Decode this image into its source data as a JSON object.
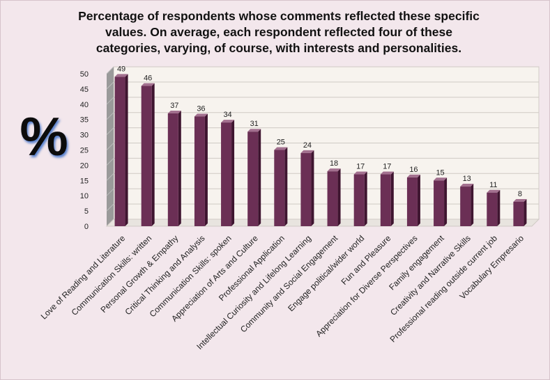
{
  "title_lines": [
    "Percentage of respondents whose comments reflected these specific",
    "values. On average, each respondent reflected four of these",
    "categories, varying, of course, with interests and personalities."
  ],
  "y_symbol": "%",
  "colors": {
    "bar_front": "#6b2f55",
    "bar_side": "#3f1530",
    "bar_top": "#a3708f",
    "wall": "#f7f3ee",
    "floor": "#e8e4df",
    "grid": "#cfcac4",
    "background": "#f3e7ec"
  },
  "chart_data": {
    "type": "bar",
    "title": "Percentage of respondents whose comments reflected these specific values. On average, each respondent reflected four of these categories, varying, of course, with interests and personalities.",
    "xlabel": "",
    "ylabel": "%",
    "ylim": [
      0,
      50
    ],
    "yticks": [
      0,
      5,
      10,
      15,
      20,
      25,
      30,
      35,
      40,
      45,
      50
    ],
    "grid": true,
    "legend": "none",
    "three_d": true,
    "categories": [
      "Love of Reading and Literature",
      "Communication Skills: written",
      "Personal Growth & Empathy",
      "Critical Thinking and Analysis",
      "Communication Skills: spoken",
      "Appreciation of Arts and Culture",
      "Professional Application",
      "Intellectual Curiosity and Lifelong Learning",
      "Community and Social Engagement",
      "Engage political/wider world",
      "Fun and Pleasure",
      "Appreciation for Diverse Perspectives",
      "Family engagement",
      "Creativity and Narrative Skills",
      "Professional reading outside current job",
      "Vocabulary Empresario"
    ],
    "values": [
      49,
      46,
      37,
      36,
      34,
      31,
      25,
      24,
      18,
      17,
      17,
      16,
      15,
      13,
      11,
      8
    ],
    "data_labels": [
      "49",
      "46",
      "37",
      "36",
      "34",
      "31",
      "25",
      "24",
      "18",
      "17",
      "17",
      "16",
      "15",
      "13",
      "11",
      "8"
    ]
  }
}
